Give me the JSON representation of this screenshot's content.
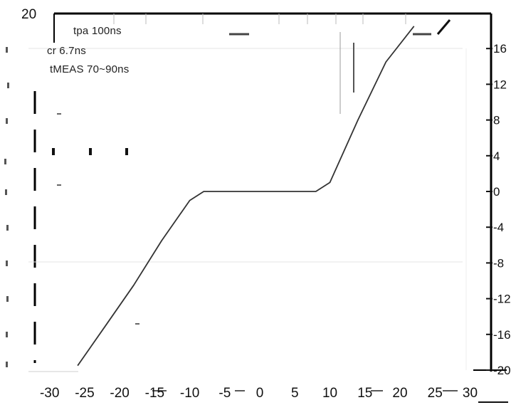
{
  "chart_data": {
    "type": "line",
    "title": "",
    "xlabel": "",
    "ylabel": "",
    "xlim": [
      -32,
      33
    ],
    "ylim": [
      -20,
      20
    ],
    "x_ticks": [
      -30,
      -25,
      -20,
      -15,
      -10,
      -5,
      0,
      5,
      10,
      15,
      20,
      25,
      30
    ],
    "y_ticks_left_printed": [
      20
    ],
    "y_ticks_right": [
      16,
      12,
      8,
      4,
      0,
      -4,
      -8,
      -12,
      -16,
      -20
    ],
    "y_tick_labels_right": [
      "16",
      "12",
      "8",
      "4",
      "0",
      "-4",
      "-8",
      "-12",
      "-16",
      "-20"
    ],
    "annotations": [
      "tpa 100ns",
      "cr 6.7ns",
      "tMEAS 70~90ns"
    ],
    "grid": false,
    "series": [
      {
        "x": [
          -26,
          -22,
          -18,
          -14,
          -10,
          -8,
          0,
          8,
          10,
          14,
          18,
          22
        ],
        "y": [
          -19.5,
          -15,
          -10.5,
          -5.5,
          -1,
          0,
          0,
          0,
          1,
          8,
          14.5,
          18.5
        ]
      }
    ],
    "colors": {
      "line": "#333333",
      "frame": "#000000",
      "background": "#ffffff"
    }
  }
}
